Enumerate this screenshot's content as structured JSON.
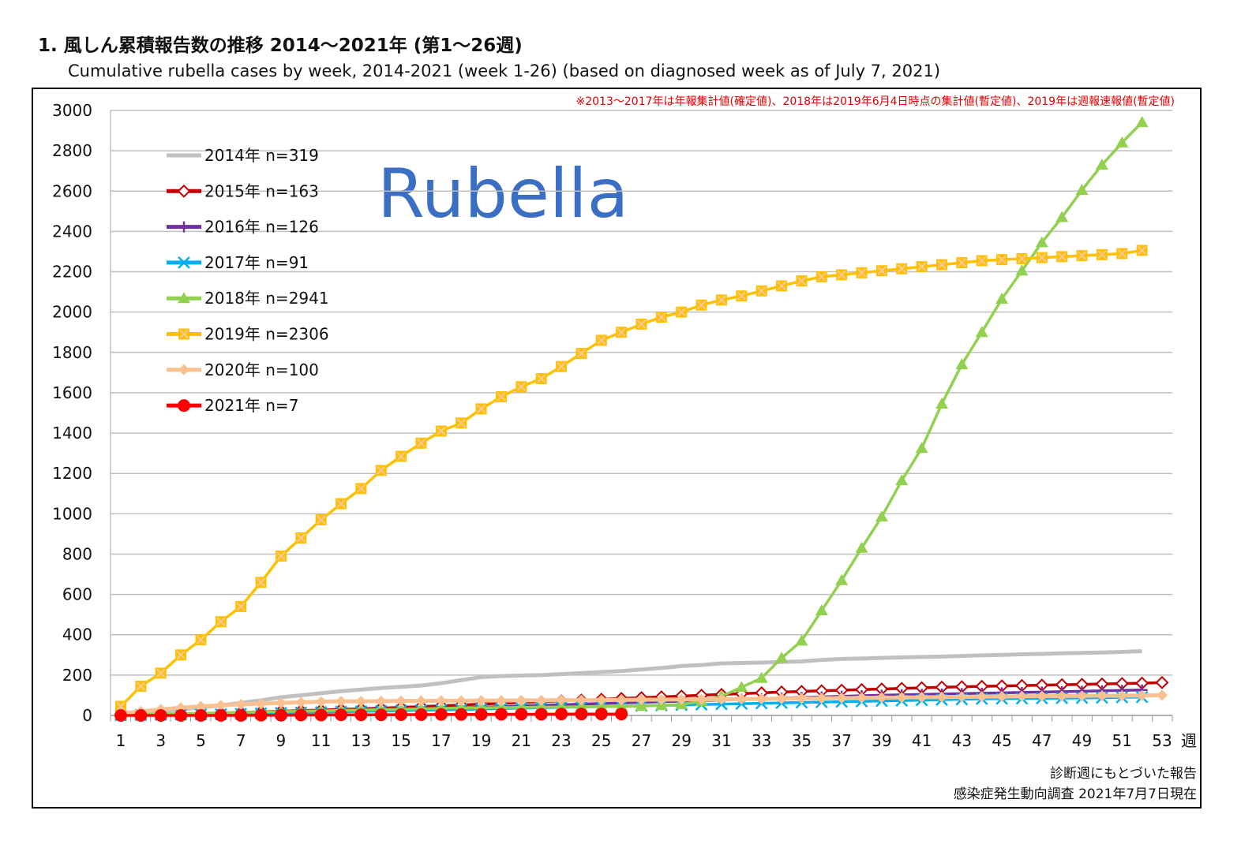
{
  "title": "1. 風しん累積報告数の推移  2014～2021年 (第1～26週)",
  "subtitle": "Cumulative rubella cases by week, 2014-2021 (week 1-26)  (based on diagnosed week as of July 7, 2021)",
  "note": "※2013～2017年は年報集計値(確定値)、2018年は2019年6月4日時点の集計値(暫定値)、2019年は週報速報値(暫定値)",
  "watermark": "Rubella",
  "footer": [
    "診断週にもとづいた報告",
    "感染症発生動向調査 2021年7月7日現在"
  ],
  "chart_data": {
    "type": "line",
    "xlabel": "週",
    "xlim": [
      1,
      53
    ],
    "xticks": [
      "1",
      "3",
      "5",
      "7",
      "9",
      "11",
      "13",
      "15",
      "17",
      "19",
      "21",
      "23",
      "25",
      "27",
      "29",
      "31",
      "33",
      "35",
      "37",
      "39",
      "41",
      "43",
      "45",
      "47",
      "49",
      "51",
      "53"
    ],
    "ylim": [
      0,
      3000
    ],
    "yticks": [
      "0",
      "200",
      "400",
      "600",
      "800",
      "1000",
      "1200",
      "1400",
      "1600",
      "1800",
      "2000",
      "2200",
      "2400",
      "2600",
      "2800",
      "3000"
    ],
    "grid": true,
    "legend": "top-left",
    "series": [
      {
        "name": "2014年 n=319",
        "color": "#c0c0c0",
        "marker": "none",
        "values": [
          5,
          12,
          20,
          30,
          40,
          50,
          62,
          75,
          90,
          100,
          110,
          120,
          128,
          136,
          142,
          148,
          160,
          175,
          190,
          195,
          198,
          200,
          205,
          210,
          215,
          220,
          228,
          235,
          245,
          250,
          258,
          260,
          262,
          265,
          268,
          275,
          280,
          282,
          285,
          288,
          290,
          292,
          295,
          298,
          300,
          303,
          305,
          308,
          310,
          312,
          315,
          319
        ]
      },
      {
        "name": "2015年 n=163",
        "color": "#c00000",
        "marker": "diamond-open",
        "values": [
          2,
          4,
          6,
          8,
          10,
          12,
          15,
          18,
          21,
          24,
          27,
          30,
          33,
          36,
          40,
          44,
          48,
          52,
          56,
          60,
          64,
          68,
          72,
          76,
          80,
          84,
          88,
          92,
          96,
          100,
          104,
          108,
          112,
          116,
          119,
          122,
          125,
          128,
          131,
          134,
          137,
          140,
          142,
          144,
          146,
          148,
          150,
          152,
          154,
          156,
          158,
          160,
          163
        ]
      },
      {
        "name": "2016年 n=126",
        "color": "#7030a0",
        "marker": "plus",
        "values": [
          1,
          2,
          3,
          5,
          7,
          9,
          11,
          13,
          15,
          17,
          19,
          21,
          23,
          26,
          29,
          32,
          35,
          38,
          41,
          44,
          47,
          50,
          53,
          56,
          59,
          62,
          65,
          68,
          71,
          74,
          77,
          80,
          83,
          86,
          89,
          92,
          95,
          98,
          100,
          102,
          104,
          106,
          108,
          110,
          112,
          114,
          116,
          118,
          120,
          122,
          124,
          126
        ]
      },
      {
        "name": "2017年 n=91",
        "color": "#00b0f0",
        "marker": "x",
        "values": [
          1,
          2,
          3,
          4,
          5,
          6,
          8,
          10,
          12,
          14,
          16,
          18,
          20,
          22,
          24,
          26,
          28,
          30,
          32,
          34,
          36,
          38,
          40,
          42,
          44,
          46,
          48,
          50,
          52,
          54,
          56,
          58,
          60,
          62,
          64,
          66,
          68,
          70,
          72,
          74,
          76,
          78,
          80,
          82,
          83,
          84,
          85,
          86,
          87,
          88,
          90,
          91
        ]
      },
      {
        "name": "2018年 n=2941",
        "color": "#92d050",
        "marker": "triangle",
        "values": [
          3,
          5,
          7,
          9,
          11,
          13,
          15,
          17,
          19,
          21,
          23,
          25,
          27,
          29,
          31,
          33,
          35,
          37,
          38,
          39,
          40,
          41,
          42,
          43,
          44,
          45,
          47,
          50,
          55,
          70,
          95,
          140,
          185,
          285,
          370,
          520,
          670,
          830,
          985,
          1165,
          1325,
          1545,
          1740,
          1900,
          2065,
          2205,
          2345,
          2470,
          2605,
          2730,
          2840,
          2941
        ]
      },
      {
        "name": "2019年 n=2306",
        "color": "#ffc000",
        "marker": "square-x",
        "values": [
          45,
          145,
          210,
          300,
          375,
          465,
          540,
          660,
          790,
          880,
          970,
          1050,
          1125,
          1215,
          1285,
          1350,
          1410,
          1450,
          1520,
          1580,
          1630,
          1670,
          1730,
          1795,
          1860,
          1900,
          1940,
          1975,
          2000,
          2035,
          2060,
          2080,
          2105,
          2130,
          2155,
          2175,
          2185,
          2195,
          2205,
          2215,
          2225,
          2235,
          2245,
          2255,
          2260,
          2265,
          2270,
          2275,
          2280,
          2285,
          2290,
          2306
        ]
      },
      {
        "name": "2020年 n=100",
        "color": "#fac090",
        "marker": "diamond",
        "values": [
          10,
          20,
          30,
          38,
          45,
          50,
          55,
          58,
          62,
          65,
          68,
          70,
          70,
          71,
          72,
          72,
          73,
          73,
          74,
          74,
          75,
          75,
          76,
          76,
          77,
          77,
          78,
          78,
          79,
          80,
          80,
          81,
          82,
          83,
          84,
          85,
          86,
          87,
          88,
          89,
          90,
          91,
          92,
          93,
          94,
          95,
          96,
          96,
          97,
          98,
          98,
          99,
          100
        ]
      },
      {
        "name": "2021年 n=7",
        "color": "#ff0000",
        "marker": "circle",
        "values": [
          0,
          0,
          0,
          0,
          0,
          0,
          0,
          1,
          1,
          2,
          2,
          3,
          3,
          3,
          4,
          4,
          5,
          5,
          5,
          6,
          6,
          6,
          7,
          7,
          7,
          7
        ]
      }
    ]
  }
}
